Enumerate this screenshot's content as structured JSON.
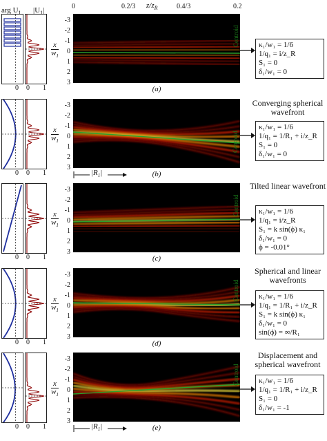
{
  "header": {
    "arg_label": "arg U",
    "arg_sub": "1",
    "abs_label": "|U",
    "abs_sub": "1",
    "abs_end": "|",
    "axis_label": "z/z",
    "axis_sub": "R",
    "ticks": [
      "0",
      "0.2/3",
      "0.4/3",
      "0.2"
    ]
  },
  "y_label": {
    "top": "x",
    "bottom": "w",
    "sub": "1"
  },
  "y_ticks": [
    "-3",
    "-2",
    "-1",
    "0",
    "1",
    "2",
    "3"
  ],
  "centroid_label": "Centroid",
  "small_axis": {
    "arg_zero": "0",
    "abs_zero": "0",
    "abs_one": "1"
  },
  "r1_label": "|R",
  "r1_sub": "1",
  "r1_end": "|",
  "panels": [
    {
      "caption": "(a)",
      "title": "",
      "equations": [
        "κ₁/w₁ = 1/6",
        "1/q₁ = i/z_R",
        "S₁ = 0",
        "δ₁/w₁ = 0"
      ]
    },
    {
      "caption": "(b)",
      "title": "Converging spherical wavefront",
      "equations": [
        "κ₁/w₁ = 1/6",
        "1/q₁ = 1/R₁ + i/z_R",
        "S₁ = 0",
        "δ₁/w₁ = 0"
      ]
    },
    {
      "caption": "(c)",
      "title": "Tilted linear wavefront",
      "equations": [
        "κ₁/w₁ = 1/6",
        "1/q₁ = i/z_R",
        "S₁ = k sin(ϕ) κ₁",
        "δ₁/w₁ = 0",
        "ϕ = -0.01°"
      ]
    },
    {
      "caption": "(d)",
      "title": "Spherical and linear wavefronts",
      "equations": [
        "κ₁/w₁ = 1/6",
        "1/q₁ = 1/R₁ + i/z_R",
        "S₁ = k sin(ϕ) κ₁",
        "δ₁/w₁ = 0",
        "sin(ϕ) = ∞/R₁"
      ]
    },
    {
      "caption": "(e)",
      "title": "Displacement and spherical wavefront",
      "equations": [
        "κ₁/w₁ = 1/6",
        "1/q₁ = 1/R₁ + i/z_R",
        "S₁ = 0",
        "δ₁/w₁ = -1"
      ]
    }
  ],
  "colors": {
    "hot": "#ff2200",
    "yellow": "#ffee44",
    "centroid": "#2ca02c",
    "phase": "#1f2f9f",
    "intensity": "#8b0000"
  }
}
